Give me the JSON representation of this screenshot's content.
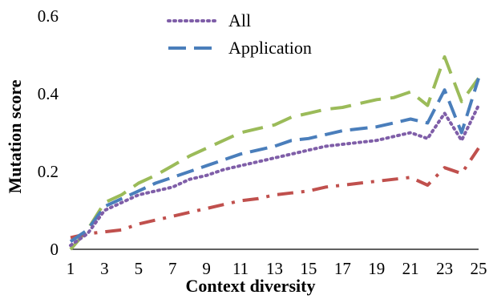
{
  "chart_data": {
    "type": "line",
    "title": "",
    "xlabel": "Context diversity",
    "ylabel": "Mutation score",
    "xlim": [
      1,
      25
    ],
    "ylim": [
      0,
      0.6
    ],
    "x_ticks": [
      1,
      3,
      5,
      7,
      9,
      11,
      13,
      15,
      17,
      19,
      21,
      23,
      25
    ],
    "y_ticks": [
      0,
      0.2,
      0.4,
      0.6
    ],
    "y_tick_labels": [
      "0",
      "0.2",
      "0.4",
      "0.6"
    ],
    "grid": false,
    "legend_position": "top-center",
    "x": [
      1,
      2,
      3,
      4,
      5,
      6,
      7,
      8,
      9,
      10,
      11,
      12,
      13,
      14,
      15,
      16,
      17,
      18,
      19,
      20,
      21,
      22,
      23,
      24,
      25
    ],
    "series": [
      {
        "name": "All",
        "style": "dotted",
        "color": "#7f5ea8",
        "values": [
          0.01,
          0.04,
          0.1,
          0.12,
          0.14,
          0.15,
          0.16,
          0.18,
          0.19,
          0.205,
          0.215,
          0.225,
          0.235,
          0.245,
          0.255,
          0.265,
          0.27,
          0.275,
          0.28,
          0.29,
          0.3,
          0.285,
          0.35,
          0.28,
          0.37
        ]
      },
      {
        "name": "Application",
        "style": "dashed",
        "color": "#4a7ebb",
        "values": [
          0.02,
          0.05,
          0.11,
          0.13,
          0.15,
          0.17,
          0.185,
          0.2,
          0.215,
          0.23,
          0.245,
          0.255,
          0.265,
          0.28,
          0.285,
          0.295,
          0.305,
          0.31,
          0.315,
          0.325,
          0.335,
          0.325,
          0.41,
          0.3,
          0.44
        ]
      },
      {
        "name": "",
        "style": "dashdot",
        "color": "#c0504d",
        "values": [
          0.03,
          0.04,
          0.045,
          0.05,
          0.065,
          0.075,
          0.085,
          0.095,
          0.105,
          0.115,
          0.125,
          0.13,
          0.14,
          0.145,
          0.15,
          0.16,
          0.165,
          0.17,
          0.175,
          0.18,
          0.185,
          0.165,
          0.21,
          0.195,
          0.26
        ]
      },
      {
        "name": "",
        "style": "longdash",
        "color": "#9bbb59",
        "values": [
          0.0,
          0.05,
          0.12,
          0.14,
          0.17,
          0.19,
          0.215,
          0.24,
          0.26,
          0.28,
          0.3,
          0.31,
          0.32,
          0.34,
          0.35,
          0.36,
          0.365,
          0.375,
          0.385,
          0.39,
          0.405,
          0.37,
          0.495,
          0.38,
          0.44
        ]
      }
    ]
  }
}
